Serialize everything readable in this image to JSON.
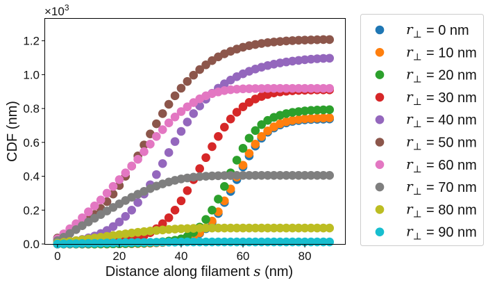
{
  "chart_data": {
    "type": "scatter",
    "xlabel_prefix": "Distance along filament ",
    "xlabel_symbol": "s",
    "xlabel_suffix": " (nm)",
    "ylabel": "CDF  (nm)",
    "y_offset_text": "×10",
    "y_offset_exp": "3",
    "xlim": [
      -4,
      93
    ],
    "ylim": [
      0,
      1.33
    ],
    "xticks": [
      0,
      20,
      40,
      60,
      80
    ],
    "xtick_labels": [
      "0",
      "20",
      "40",
      "60",
      "80"
    ],
    "yticks": [
      0.0,
      0.2,
      0.4,
      0.6,
      0.8,
      1.0,
      1.2
    ],
    "ytick_labels": [
      "0.0",
      "0.2",
      "0.4",
      "0.6",
      "0.8",
      "1.0",
      "1.2"
    ],
    "x": [
      0,
      2,
      4,
      6,
      8,
      10,
      12,
      14,
      16,
      18,
      20,
      22,
      24,
      26,
      28,
      30,
      32,
      34,
      36,
      38,
      40,
      42,
      44,
      46,
      48,
      50,
      52,
      54,
      56,
      58,
      60,
      62,
      64,
      66,
      68,
      70,
      72,
      74,
      76,
      78,
      80,
      82,
      84,
      86,
      88
    ],
    "legend_placement": "outside-right",
    "legend_symbol": "r",
    "legend_subscript": "⊥",
    "series": [
      {
        "name": "= 0 nm",
        "color": "#1f77b4",
        "values": [
          0,
          0,
          0,
          0,
          0,
          0,
          0,
          0,
          0,
          0.001,
          0.001,
          0.002,
          0.002,
          0.003,
          0.004,
          0.005,
          0.007,
          0.009,
          0.012,
          0.016,
          0.021,
          0.03,
          0.044,
          0.062,
          0.09,
          0.128,
          0.18,
          0.245,
          0.31,
          0.38,
          0.455,
          0.52,
          0.578,
          0.625,
          0.66,
          0.685,
          0.703,
          0.715,
          0.724,
          0.729,
          0.733,
          0.735,
          0.736,
          0.737,
          0.738
        ]
      },
      {
        "name": "= 10 nm",
        "color": "#ff7f0e",
        "values": [
          0,
          0,
          0,
          0,
          0,
          0,
          0,
          0,
          0,
          0.001,
          0.001,
          0.002,
          0.002,
          0.003,
          0.004,
          0.005,
          0.007,
          0.009,
          0.012,
          0.017,
          0.023,
          0.032,
          0.046,
          0.066,
          0.095,
          0.135,
          0.19,
          0.255,
          0.325,
          0.395,
          0.465,
          0.535,
          0.59,
          0.635,
          0.668,
          0.692,
          0.71,
          0.722,
          0.73,
          0.735,
          0.739,
          0.741,
          0.743,
          0.744,
          0.745
        ]
      },
      {
        "name": "= 20 nm",
        "color": "#2ca02c",
        "values": [
          0,
          0,
          0,
          0,
          0,
          0,
          0,
          0.001,
          0.001,
          0.001,
          0.002,
          0.003,
          0.004,
          0.005,
          0.006,
          0.008,
          0.01,
          0.013,
          0.017,
          0.022,
          0.03,
          0.045,
          0.068,
          0.1,
          0.145,
          0.2,
          0.265,
          0.34,
          0.42,
          0.495,
          0.565,
          0.625,
          0.67,
          0.705,
          0.73,
          0.748,
          0.76,
          0.77,
          0.777,
          0.782,
          0.786,
          0.789,
          0.791,
          0.792,
          0.793
        ]
      },
      {
        "name": "= 30 nm",
        "color": "#d62728",
        "values": [
          0,
          0.001,
          0.001,
          0.002,
          0.002,
          0.003,
          0.005,
          0.007,
          0.009,
          0.012,
          0.016,
          0.021,
          0.028,
          0.037,
          0.05,
          0.067,
          0.09,
          0.12,
          0.155,
          0.2,
          0.255,
          0.315,
          0.38,
          0.445,
          0.51,
          0.575,
          0.635,
          0.69,
          0.738,
          0.778,
          0.81,
          0.836,
          0.856,
          0.871,
          0.883,
          0.892,
          0.898,
          0.902,
          0.905,
          0.907,
          0.908,
          0.909,
          0.91,
          0.91,
          0.91
        ]
      },
      {
        "name": "= 40 nm",
        "color": "#9467bd",
        "values": [
          0.008,
          0.011,
          0.015,
          0.02,
          0.027,
          0.036,
          0.047,
          0.062,
          0.08,
          0.103,
          0.13,
          0.163,
          0.2,
          0.245,
          0.295,
          0.35,
          0.41,
          0.475,
          0.54,
          0.605,
          0.665,
          0.72,
          0.77,
          0.815,
          0.855,
          0.89,
          0.92,
          0.946,
          0.968,
          0.988,
          1.005,
          1.02,
          1.033,
          1.044,
          1.054,
          1.062,
          1.069,
          1.075,
          1.08,
          1.084,
          1.088,
          1.091,
          1.094,
          1.096,
          1.097
        ]
      },
      {
        "name": "= 50 nm",
        "color": "#8c564b",
        "values": [
          0.035,
          0.05,
          0.068,
          0.09,
          0.115,
          0.143,
          0.175,
          0.21,
          0.25,
          0.295,
          0.345,
          0.4,
          0.46,
          0.52,
          0.585,
          0.65,
          0.71,
          0.77,
          0.825,
          0.875,
          0.92,
          0.96,
          0.997,
          1.03,
          1.058,
          1.083,
          1.105,
          1.123,
          1.138,
          1.151,
          1.162,
          1.171,
          1.178,
          1.184,
          1.189,
          1.193,
          1.196,
          1.199,
          1.201,
          1.203,
          1.204,
          1.205,
          1.206,
          1.207,
          1.207
        ]
      },
      {
        "name": "= 60 nm",
        "color": "#e377c2",
        "values": [
          0.03,
          0.06,
          0.09,
          0.12,
          0.155,
          0.19,
          0.225,
          0.26,
          0.3,
          0.34,
          0.38,
          0.42,
          0.46,
          0.5,
          0.545,
          0.59,
          0.635,
          0.675,
          0.715,
          0.75,
          0.782,
          0.81,
          0.835,
          0.857,
          0.875,
          0.888,
          0.898,
          0.906,
          0.911,
          0.914,
          0.916,
          0.917,
          0.918,
          0.918,
          0.919,
          0.919,
          0.919,
          0.919,
          0.919,
          0.919,
          0.919,
          0.919,
          0.919,
          0.919,
          0.919
        ]
      },
      {
        "name": "= 70 nm",
        "color": "#7f7f7f",
        "values": [
          0.02,
          0.04,
          0.062,
          0.085,
          0.108,
          0.13,
          0.152,
          0.174,
          0.195,
          0.216,
          0.237,
          0.257,
          0.276,
          0.294,
          0.311,
          0.327,
          0.342,
          0.355,
          0.366,
          0.376,
          0.384,
          0.39,
          0.395,
          0.398,
          0.4,
          0.402,
          0.403,
          0.404,
          0.404,
          0.405,
          0.405,
          0.405,
          0.405,
          0.405,
          0.405,
          0.405,
          0.405,
          0.405,
          0.405,
          0.405,
          0.405,
          0.405,
          0.405,
          0.405,
          0.405
        ]
      },
      {
        "name": "= 80 nm",
        "color": "#bcbd22",
        "values": [
          0.005,
          0.01,
          0.015,
          0.02,
          0.025,
          0.03,
          0.035,
          0.04,
          0.045,
          0.05,
          0.055,
          0.06,
          0.065,
          0.069,
          0.073,
          0.077,
          0.08,
          0.083,
          0.086,
          0.088,
          0.09,
          0.091,
          0.092,
          0.093,
          0.094,
          0.094,
          0.094,
          0.094,
          0.094,
          0.094,
          0.094,
          0.094,
          0.094,
          0.094,
          0.094,
          0.094,
          0.094,
          0.094,
          0.094,
          0.094,
          0.094,
          0.094,
          0.094,
          0.094,
          0.094
        ]
      },
      {
        "name": "= 90 nm",
        "color": "#17becf",
        "values": [
          0,
          0.001,
          0.002,
          0.002,
          0.003,
          0.004,
          0.004,
          0.005,
          0.006,
          0.006,
          0.007,
          0.008,
          0.008,
          0.009,
          0.009,
          0.01,
          0.01,
          0.011,
          0.011,
          0.011,
          0.012,
          0.012,
          0.012,
          0.012,
          0.012,
          0.012,
          0.012,
          0.012,
          0.012,
          0.012,
          0.012,
          0.012,
          0.012,
          0.012,
          0.012,
          0.012,
          0.012,
          0.012,
          0.012,
          0.012,
          0.012,
          0.012,
          0.012,
          0.012,
          0.012
        ]
      }
    ]
  }
}
